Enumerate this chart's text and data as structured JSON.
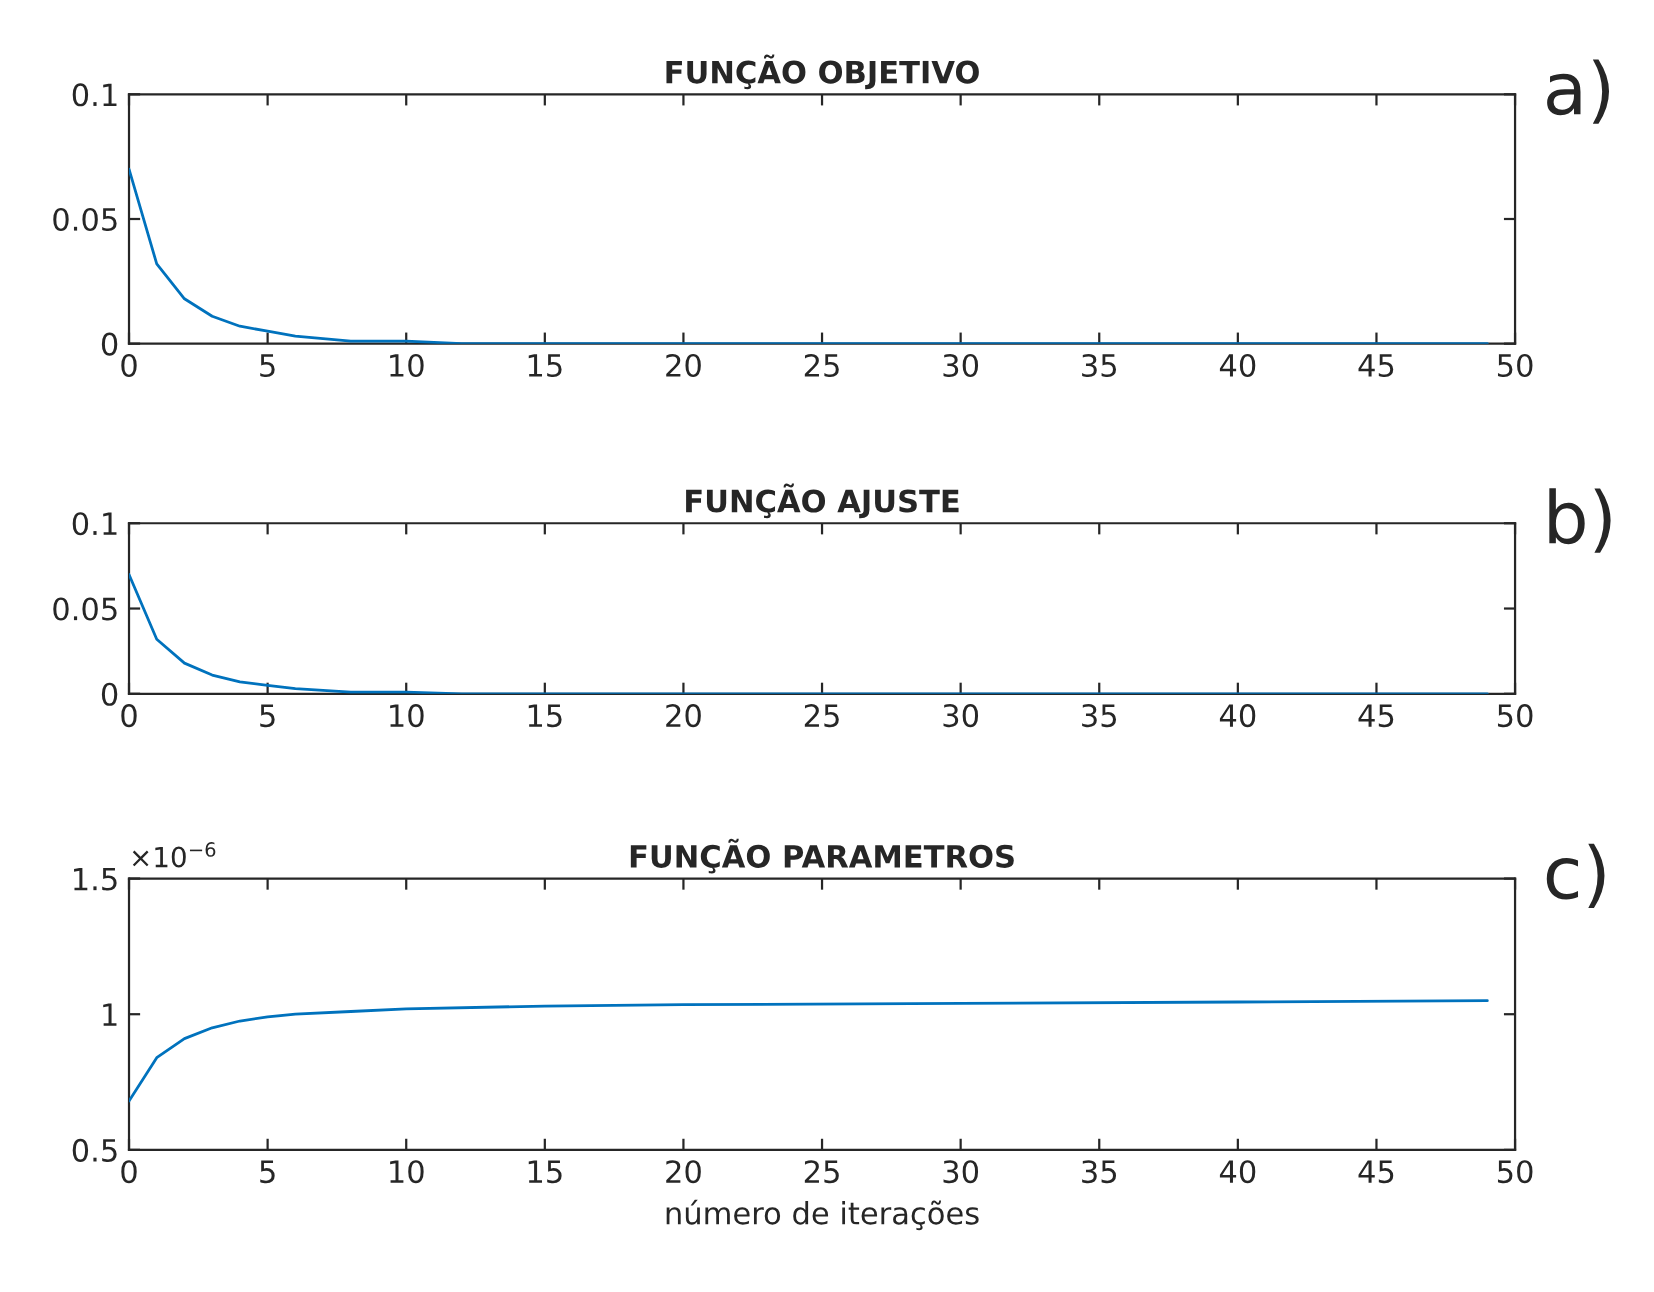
{
  "chart_data": [
    {
      "type": "line",
      "title": "FUNÇÃO OBJETIVO",
      "annotations": [
        "a)"
      ],
      "series": [
        {
          "color": "#0072bd",
          "x": [
            0,
            1,
            2,
            3,
            4,
            5,
            6,
            7,
            8,
            10,
            12,
            15,
            20,
            30,
            49
          ],
          "values": [
            0.07,
            0.032,
            0.018,
            0.011,
            0.007,
            0.005,
            0.003,
            0.002,
            0.001,
            0.001,
            0,
            0,
            0,
            0,
            0
          ]
        }
      ],
      "xlim": [
        0,
        50
      ],
      "xticks": [
        0,
        5,
        10,
        15,
        20,
        25,
        30,
        35,
        40,
        45,
        50
      ],
      "ylim": [
        0,
        0.1
      ],
      "yticks": [
        0,
        0.05,
        0.1
      ]
    },
    {
      "type": "line",
      "title": "FUNÇÃO AJUSTE",
      "annotations": [
        "b)"
      ],
      "series": [
        {
          "color": "#0072bd",
          "x": [
            0,
            1,
            2,
            3,
            4,
            5,
            6,
            7,
            8,
            10,
            12,
            15,
            20,
            30,
            49
          ],
          "values": [
            0.07,
            0.032,
            0.018,
            0.011,
            0.007,
            0.005,
            0.003,
            0.002,
            0.001,
            0.001,
            0,
            0,
            0,
            0,
            0
          ]
        }
      ],
      "xlim": [
        0,
        50
      ],
      "xticks": [
        0,
        5,
        10,
        15,
        20,
        25,
        30,
        35,
        40,
        45,
        50
      ],
      "ylim": [
        0,
        0.1
      ],
      "yticks": [
        0,
        0.05,
        0.1
      ]
    },
    {
      "type": "line",
      "title": "FUNÇÃO PARAMETROS",
      "xlabel": "número de iterações",
      "annotations": [
        "×10$^{−6}$",
        "c)"
      ],
      "series": [
        {
          "color": "#0072bd",
          "x": [
            0,
            1,
            2,
            3,
            4,
            5,
            6,
            8,
            10,
            15,
            20,
            30,
            40,
            49
          ],
          "values": [
            0.68,
            0.84,
            0.91,
            0.95,
            0.975,
            0.99,
            1.0,
            1.01,
            1.02,
            1.03,
            1.035,
            1.04,
            1.045,
            1.05
          ]
        }
      ],
      "xlim": [
        0,
        50
      ],
      "xticks": [
        0,
        5,
        10,
        15,
        20,
        25,
        30,
        35,
        40,
        45,
        50
      ],
      "ylim": [
        0.5,
        1.5
      ],
      "yticks": [
        0.5,
        1,
        1.5
      ]
    }
  ]
}
